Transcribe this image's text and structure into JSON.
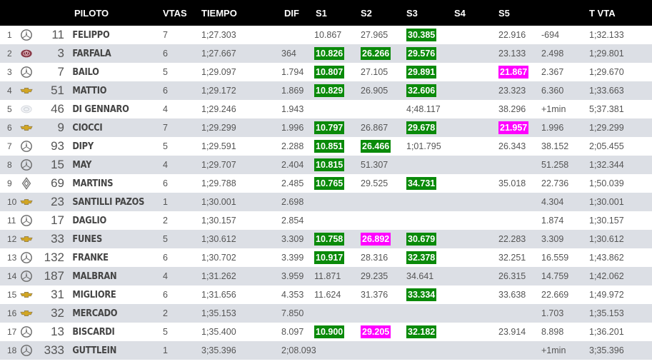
{
  "header": {
    "piloto": "PILOTO",
    "vtas": "VTAS",
    "tiempo": "TIEMPO",
    "dif": "DIF",
    "s1": "S1",
    "s2": "S2",
    "s3": "S3",
    "s4": "S4",
    "s5": "S5",
    "tvta": "T VTA"
  },
  "colors": {
    "green": "#0a8a0a",
    "magenta": "#ff00ff",
    "header_bg": "#000000",
    "row_alt": "#dcdfe5"
  },
  "rows": [
    {
      "pos": "1",
      "brand": "mercedes-icon",
      "num": "11",
      "name": "FELIPPO",
      "vtas": "7",
      "tiempo": "1;27.303",
      "dif": "",
      "s1": "10.867",
      "s1c": "",
      "s2": "27.965",
      "s2c": "",
      "s3": "30.385",
      "s3c": "green",
      "s4": "",
      "s5": "22.916",
      "s5c": "",
      "x": "-694",
      "tvta": "1;32.133"
    },
    {
      "pos": "2",
      "brand": "toyota-icon",
      "num": "3",
      "name": "FARFALA",
      "vtas": "6",
      "tiempo": "1;27.667",
      "dif": "364",
      "s1": "10.826",
      "s1c": "green",
      "s2": "26.266",
      "s2c": "green",
      "s3": "29.576",
      "s3c": "green",
      "s4": "",
      "s5": "23.133",
      "s5c": "",
      "x": "2.498",
      "tvta": "1;29.801"
    },
    {
      "pos": "3",
      "brand": "mercedes-icon",
      "num": "7",
      "name": "BAILO",
      "vtas": "5",
      "tiempo": "1;29.097",
      "dif": "1.794",
      "s1": "10.807",
      "s1c": "green",
      "s2": "27.105",
      "s2c": "",
      "s3": "29.891",
      "s3c": "green",
      "s4": "",
      "s5": "21.867",
      "s5c": "magenta",
      "x": "2.367",
      "tvta": "1;29.670"
    },
    {
      "pos": "4",
      "brand": "chevrolet-icon",
      "num": "51",
      "name": "MATTIO",
      "vtas": "6",
      "tiempo": "1;29.172",
      "dif": "1.869",
      "s1": "10.829",
      "s1c": "green",
      "s2": "26.905",
      "s2c": "",
      "s3": "32.606",
      "s3c": "green",
      "s4": "",
      "s5": "23.323",
      "s5c": "",
      "x": "6.360",
      "tvta": "1;33.663"
    },
    {
      "pos": "5",
      "brand": "honda-icon",
      "num": "46",
      "name": "DI GENNARO",
      "vtas": "4",
      "tiempo": "1;29.246",
      "dif": "1.943",
      "s1": "",
      "s1c": "",
      "s2": "",
      "s2c": "",
      "s3": "4;48.117",
      "s3c": "",
      "s4": "",
      "s5": "38.296",
      "s5c": "",
      "x": "+1min",
      "tvta": "5;37.381"
    },
    {
      "pos": "6",
      "brand": "chevrolet-icon",
      "num": "9",
      "name": "CIOCCI",
      "vtas": "7",
      "tiempo": "1;29.299",
      "dif": "1.996",
      "s1": "10.797",
      "s1c": "green",
      "s2": "26.867",
      "s2c": "",
      "s3": "29.678",
      "s3c": "green",
      "s4": "",
      "s5": "21.957",
      "s5c": "magenta",
      "x": "1.996",
      "tvta": "1;29.299"
    },
    {
      "pos": "7",
      "brand": "mercedes-icon",
      "num": "93",
      "name": "DIPY",
      "vtas": "5",
      "tiempo": "1;29.591",
      "dif": "2.288",
      "s1": "10.851",
      "s1c": "green",
      "s2": "26.466",
      "s2c": "green",
      "s3": "1;01.795",
      "s3c": "",
      "s4": "",
      "s5": "26.343",
      "s5c": "",
      "x": "38.152",
      "tvta": "2;05.455"
    },
    {
      "pos": "8",
      "brand": "mercedes-icon",
      "num": "15",
      "name": "MAY",
      "vtas": "4",
      "tiempo": "1;29.707",
      "dif": "2.404",
      "s1": "10.815",
      "s1c": "green",
      "s2": "51.307",
      "s2c": "",
      "s3": "",
      "s3c": "",
      "s4": "",
      "s5": "",
      "s5c": "",
      "x": "51.258",
      "tvta": "1;32.344"
    },
    {
      "pos": "9",
      "brand": "renault-icon",
      "num": "69",
      "name": "MARTINS",
      "vtas": "6",
      "tiempo": "1;29.788",
      "dif": "2.485",
      "s1": "10.765",
      "s1c": "green",
      "s2": "29.525",
      "s2c": "",
      "s3": "34.731",
      "s3c": "green",
      "s4": "",
      "s5": "35.018",
      "s5c": "",
      "x": "22.736",
      "tvta": "1;50.039"
    },
    {
      "pos": "10",
      "brand": "chevrolet-icon",
      "num": "23",
      "name": "SANTILLI PAZOS",
      "vtas": "1",
      "tiempo": "1;30.001",
      "dif": "2.698",
      "s1": "",
      "s1c": "",
      "s2": "",
      "s2c": "",
      "s3": "",
      "s3c": "",
      "s4": "",
      "s5": "",
      "s5c": "",
      "x": "4.304",
      "tvta": "1;30.001"
    },
    {
      "pos": "11",
      "brand": "mercedes-icon",
      "num": "17",
      "name": "DAGLIO",
      "vtas": "2",
      "tiempo": "1;30.157",
      "dif": "2.854",
      "s1": "",
      "s1c": "",
      "s2": "",
      "s2c": "",
      "s3": "",
      "s3c": "",
      "s4": "",
      "s5": "",
      "s5c": "",
      "x": "1.874",
      "tvta": "1;30.157"
    },
    {
      "pos": "12",
      "brand": "chevrolet-icon",
      "num": "33",
      "name": "FUNES",
      "vtas": "5",
      "tiempo": "1;30.612",
      "dif": "3.309",
      "s1": "10.758",
      "s1c": "green",
      "s2": "26.892",
      "s2c": "magenta",
      "s3": "30.679",
      "s3c": "green",
      "s4": "",
      "s5": "22.283",
      "s5c": "",
      "x": "3.309",
      "tvta": "1;30.612"
    },
    {
      "pos": "13",
      "brand": "mercedes-icon",
      "num": "132",
      "name": "FRANKE",
      "vtas": "6",
      "tiempo": "1;30.702",
      "dif": "3.399",
      "s1": "10.917",
      "s1c": "green",
      "s2": "28.316",
      "s2c": "",
      "s3": "32.378",
      "s3c": "green",
      "s4": "",
      "s5": "32.251",
      "s5c": "",
      "x": "16.559",
      "tvta": "1;43.862"
    },
    {
      "pos": "14",
      "brand": "mercedes-icon",
      "num": "187",
      "name": "MALBRAN",
      "vtas": "4",
      "tiempo": "1;31.262",
      "dif": "3.959",
      "s1": "11.871",
      "s1c": "",
      "s2": "29.235",
      "s2c": "",
      "s3": "34.641",
      "s3c": "",
      "s4": "",
      "s5": "26.315",
      "s5c": "",
      "x": "14.759",
      "tvta": "1;42.062"
    },
    {
      "pos": "15",
      "brand": "chevrolet-icon",
      "num": "31",
      "name": "MIGLIORE",
      "vtas": "6",
      "tiempo": "1;31.656",
      "dif": "4.353",
      "s1": "11.624",
      "s1c": "",
      "s2": "31.376",
      "s2c": "",
      "s3": "33.334",
      "s3c": "green",
      "s4": "",
      "s5": "33.638",
      "s5c": "",
      "x": "22.669",
      "tvta": "1;49.972"
    },
    {
      "pos": "16",
      "brand": "chevrolet-icon",
      "num": "32",
      "name": "MERCADO",
      "vtas": "2",
      "tiempo": "1;35.153",
      "dif": "7.850",
      "s1": "",
      "s1c": "",
      "s2": "",
      "s2c": "",
      "s3": "",
      "s3c": "",
      "s4": "",
      "s5": "",
      "s5c": "",
      "x": "1.703",
      "tvta": "1;35.153"
    },
    {
      "pos": "17",
      "brand": "mercedes-icon",
      "num": "13",
      "name": "BISCARDI",
      "vtas": "5",
      "tiempo": "1;35.400",
      "dif": "8.097",
      "s1": "10.900",
      "s1c": "green",
      "s2": "29.205",
      "s2c": "magenta",
      "s3": "32.182",
      "s3c": "green",
      "s4": "",
      "s5": "23.914",
      "s5c": "",
      "x": "8.898",
      "tvta": "1;36.201"
    },
    {
      "pos": "18",
      "brand": "mercedes-icon",
      "num": "333",
      "name": "GUTTLEIN",
      "vtas": "1",
      "tiempo": "3;35.396",
      "dif": "2;08.093",
      "s1": "",
      "s1c": "",
      "s2": "",
      "s2c": "",
      "s3": "",
      "s3c": "",
      "s4": "",
      "s5": "",
      "s5c": "",
      "x": "+1min",
      "tvta": "3;35.396"
    }
  ]
}
